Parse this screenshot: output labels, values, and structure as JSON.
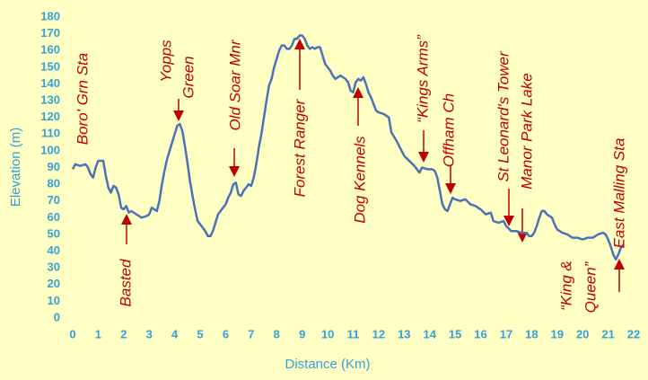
{
  "chart_data": {
    "type": "line",
    "x_label": "Distance (Km)",
    "y_label": "Elevation (m)",
    "color": "#4a72b8",
    "x": [
      0,
      0.1,
      0.3,
      0.5,
      0.6,
      0.7,
      0.8,
      0.9,
      1.0,
      1.2,
      1.3,
      1.4,
      1.5,
      1.6,
      1.7,
      1.8,
      1.9,
      2.0,
      2.1,
      2.2,
      2.3,
      2.5,
      2.6,
      2.7,
      2.9,
      3.0,
      3.1,
      3.2,
      3.3,
      3.4,
      3.5,
      3.6,
      3.7,
      3.8,
      3.9,
      4.0,
      4.1,
      4.2,
      4.3,
      4.4,
      4.5,
      4.6,
      4.7,
      4.8,
      4.9,
      5.0,
      5.1,
      5.2,
      5.3,
      5.4,
      5.5,
      5.6,
      5.7,
      5.8,
      5.9,
      6.0,
      6.1,
      6.2,
      6.3,
      6.4,
      6.5,
      6.6,
      6.7,
      6.8,
      6.9,
      7.0,
      7.1,
      7.2,
      7.3,
      7.4,
      7.5,
      7.6,
      7.7,
      7.8,
      7.9,
      8.0,
      8.1,
      8.2,
      8.3,
      8.4,
      8.5,
      8.6,
      8.7,
      8.8,
      8.9,
      9.0,
      9.1,
      9.2,
      9.3,
      9.4,
      9.5,
      9.6,
      9.7,
      9.8,
      9.9,
      10.0,
      10.1,
      10.2,
      10.3,
      10.4,
      10.5,
      10.6,
      10.7,
      10.8,
      10.9,
      11.0,
      11.1,
      11.2,
      11.3,
      11.4,
      11.5,
      11.6,
      11.7,
      11.8,
      11.9,
      12.0,
      12.2,
      12.4,
      12.5,
      12.7,
      12.9,
      13.0,
      13.2,
      13.4,
      13.5,
      13.6,
      13.7,
      13.9,
      14.1,
      14.2,
      14.3,
      14.4,
      14.5,
      14.6,
      14.7,
      14.8,
      14.9,
      15.0,
      15.2,
      15.4,
      15.6,
      15.8,
      16.0,
      16.2,
      16.4,
      16.5,
      16.7,
      16.9,
      17.0,
      17.2,
      17.4,
      17.6,
      17.8,
      17.9,
      18.0,
      18.1,
      18.2,
      18.3,
      18.4,
      18.5,
      18.6,
      18.8,
      18.9,
      19.0,
      19.2,
      19.4,
      19.6,
      19.8,
      20.0,
      20.2,
      20.4,
      20.6,
      20.8,
      20.9,
      21.0,
      21.1,
      21.2,
      21.3,
      21.4,
      21.5,
      21.6
    ],
    "values": [
      89,
      92,
      91,
      92,
      90,
      86,
      84,
      90,
      94,
      94,
      85,
      78,
      75,
      79,
      78,
      74,
      66,
      65,
      67,
      63,
      64,
      62,
      61,
      60,
      61,
      62,
      66,
      65,
      64,
      70,
      80,
      88,
      95,
      100,
      105,
      110,
      115,
      116,
      112,
      103,
      93,
      82,
      73,
      65,
      58,
      56,
      54,
      52,
      49,
      49,
      52,
      57,
      62,
      64,
      66,
      68,
      72,
      75,
      80,
      81,
      74,
      73,
      76,
      78,
      80,
      79,
      84,
      92,
      102,
      110,
      120,
      130,
      139,
      143,
      150,
      155,
      160,
      163,
      163,
      161,
      161,
      163,
      167,
      167,
      169,
      169,
      167,
      163,
      161,
      162,
      161,
      162,
      162,
      157,
      152,
      150,
      148,
      145,
      143,
      144,
      145,
      144,
      143,
      141,
      136,
      135,
      141,
      143,
      142,
      144,
      140,
      135,
      132,
      128,
      124,
      123,
      122,
      120,
      111,
      106,
      100,
      97,
      94,
      91,
      89,
      87,
      90,
      89,
      89,
      88,
      84,
      76,
      68,
      65,
      64,
      68,
      72,
      71,
      70,
      71,
      68,
      67,
      65,
      62,
      63,
      58,
      57,
      58,
      55,
      52,
      52,
      51,
      51,
      49,
      49,
      51,
      55,
      60,
      64,
      64,
      62,
      60,
      56,
      53,
      51,
      50,
      48,
      48,
      47,
      48,
      48,
      50,
      51,
      50,
      47,
      43,
      38,
      35,
      38,
      42,
      44
    ],
    "xlim": [
      0,
      22
    ],
    "xticks": [
      0,
      1,
      2,
      3,
      4,
      5,
      6,
      7,
      8,
      9,
      10,
      11,
      12,
      13,
      14,
      15,
      16,
      17,
      18,
      19,
      20,
      21,
      22
    ],
    "ylim": [
      0,
      180
    ],
    "yticks": [
      0,
      10,
      20,
      30,
      40,
      50,
      60,
      70,
      80,
      90,
      100,
      110,
      120,
      130,
      140,
      150,
      160,
      170,
      180
    ],
    "grid": false,
    "annotations": [
      "Boro' Grn Sta",
      "Yopps",
      "Green",
      "Old Soar Mnr",
      "Forest Ranger",
      "Dog Kennels",
      "“Kings Arms”",
      "Offham Ch",
      "St Leonard's Tower",
      "Manor Park Lake",
      "Basted",
      "“King &",
      "Queen”",
      "East Malling Sta"
    ]
  }
}
